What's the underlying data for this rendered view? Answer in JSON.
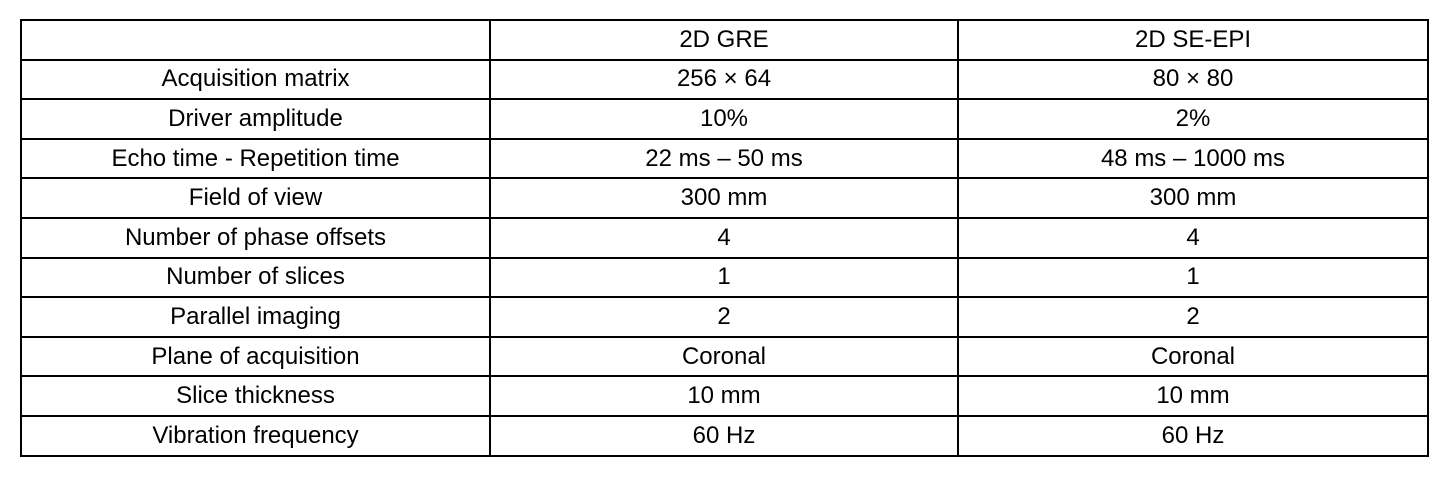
{
  "table": {
    "headers": [
      "",
      "2D GRE",
      "2D SE-EPI"
    ],
    "rows": [
      [
        "Acquisition matrix",
        "256 × 64",
        "80 × 80"
      ],
      [
        "Driver amplitude",
        "10%",
        "2%"
      ],
      [
        "Echo time - Repetition time",
        "22 ms – 50 ms",
        "48 ms – 1000 ms"
      ],
      [
        "Field of view",
        "300 mm",
        "300 mm"
      ],
      [
        "Number of phase offsets",
        "4",
        "4"
      ],
      [
        "Number of slices",
        "1",
        "1"
      ],
      [
        "Parallel imaging",
        "2",
        "2"
      ],
      [
        "Plane of acquisition",
        "Coronal",
        "Coronal"
      ],
      [
        "Slice thickness",
        "10 mm",
        "10 mm"
      ],
      [
        "Vibration frequency",
        "60 Hz",
        "60 Hz"
      ]
    ]
  }
}
